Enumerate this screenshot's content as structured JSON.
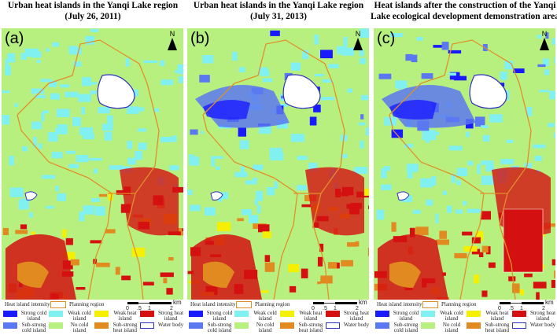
{
  "panels": [
    {
      "label": "(a)",
      "title": "Urban  heat islands in the Yanqi Lake  region (July 26, 2011)",
      "variant": 0
    },
    {
      "label": "(b)",
      "title": "Urban  heat islands in the Yanqi Lake  region (July 31, 2013)",
      "variant": 1
    },
    {
      "label": "(c)",
      "title": "Heat islands after the construction of the Yanqi Lake ecological development demonstration area",
      "variant": 2
    }
  ],
  "north": "N",
  "legend": {
    "heading": "Heat island intensity",
    "planning": "Planning region",
    "scale_unit": "km",
    "scale_ticks": [
      "0",
      ".5",
      "1",
      "2"
    ],
    "items": [
      {
        "label": "Strong cold island",
        "color": "#1a1aff"
      },
      {
        "label": "Weak cold island",
        "color": "#80f0f0"
      },
      {
        "label": "Weak heat island",
        "color": "#f5f000"
      },
      {
        "label": "Strong heat island",
        "color": "#d41010"
      },
      {
        "label": "Sub-strong cold island",
        "color": "#5a78f0"
      },
      {
        "label": "No cold island",
        "color": "#b8f080"
      },
      {
        "label": "Sub-strong heat island",
        "color": "#e08a20"
      },
      {
        "label": "Water body",
        "color": "#ffffff"
      }
    ]
  },
  "colors": {
    "planning": "#e0902a",
    "water": "#3030c0"
  }
}
